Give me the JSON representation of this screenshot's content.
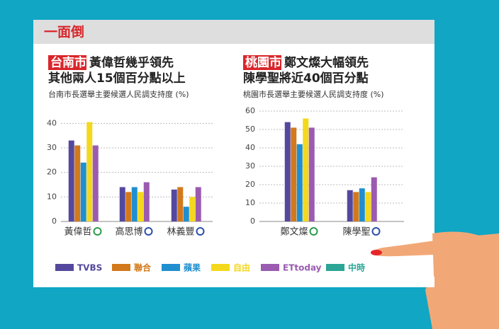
{
  "header": {
    "title": "一面倒"
  },
  "chart_data": [
    {
      "type": "bar",
      "title_tag": "台南市",
      "title_lines": [
        "黃偉哲幾乎領先",
        "其他兩人15個百分點以上"
      ],
      "subtitle": "台南市長選舉主要候選人民調支持度 (%)",
      "categories": [
        "黃偉哲",
        "高思博",
        "林義豐"
      ],
      "ylim": [
        0,
        45
      ],
      "yticks": [
        0,
        10,
        20,
        30,
        40
      ],
      "grid": true,
      "series": [
        {
          "name": "TVBS",
          "color": "#54489e",
          "values": [
            33,
            14,
            13
          ]
        },
        {
          "name": "聯合",
          "color": "#d2791c",
          "values": [
            31,
            12,
            14
          ]
        },
        {
          "name": "蘋果",
          "color": "#1f8fd0",
          "values": [
            24,
            14,
            6
          ]
        },
        {
          "name": "自由",
          "color": "#f4d81c",
          "values": [
            40.5,
            12,
            10
          ]
        },
        {
          "name": "ETtoday",
          "color": "#9a5bb0",
          "values": [
            31,
            16,
            14
          ]
        },
        {
          "name": "中時",
          "color": "#2aa596",
          "values": [
            null,
            null,
            null
          ]
        }
      ]
    },
    {
      "type": "bar",
      "title_tag": "桃園市",
      "title_lines": [
        "鄭文燦大幅領先",
        "陳學聖將近40個百分點"
      ],
      "subtitle": "桃園市長選舉主要候選人民調支持度 (%)",
      "categories": [
        "鄭文燦",
        "陳學聖"
      ],
      "ylim": [
        0,
        60
      ],
      "yticks": [
        0,
        10,
        20,
        30,
        40,
        50,
        60
      ],
      "grid": true,
      "series": [
        {
          "values": [
            54,
            17
          ]
        },
        {
          "values": [
            51,
            16
          ]
        },
        {
          "values": [
            42,
            18
          ]
        },
        {
          "values": [
            56,
            16
          ]
        },
        {
          "values": [
            51,
            24
          ]
        },
        {
          "values": [
            null,
            null
          ]
        }
      ]
    }
  ]
}
